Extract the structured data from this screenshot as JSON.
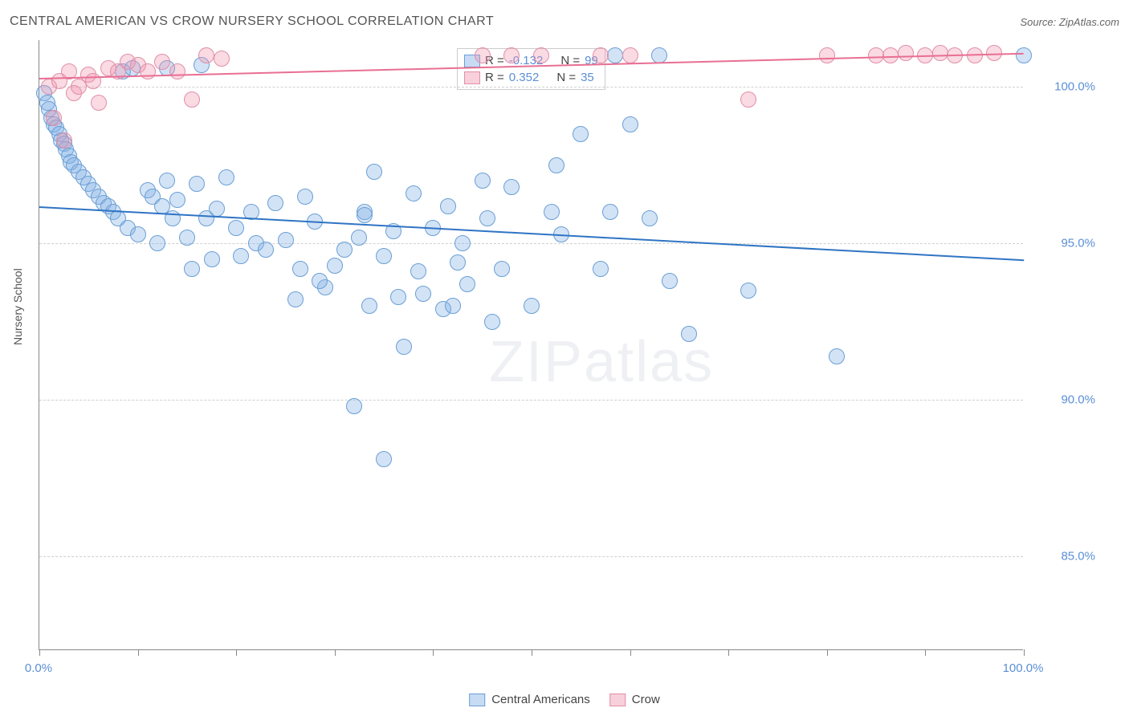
{
  "title": "CENTRAL AMERICAN VS CROW NURSERY SCHOOL CORRELATION CHART",
  "source_prefix": "Source: ",
  "source_name": "ZipAtlas.com",
  "ylabel": "Nursery School",
  "watermark_a": "ZIP",
  "watermark_b": "atlas",
  "chart": {
    "type": "scatter",
    "xlim": [
      0,
      100
    ],
    "ylim": [
      82,
      101.5
    ],
    "xtick_positions": [
      0,
      10,
      20,
      30,
      40,
      50,
      60,
      70,
      80,
      90,
      100
    ],
    "xtick_labels": {
      "0": "0.0%",
      "100": "100.0%"
    },
    "ytick_positions": [
      85,
      90,
      95,
      100
    ],
    "ytick_labels": {
      "85": "85.0%",
      "90": "90.0%",
      "95": "95.0%",
      "100": "100.0%"
    },
    "grid_horizontal": [
      85,
      90,
      95,
      100
    ],
    "grid_color": "#d0d0d0",
    "background_color": "#ffffff",
    "axis_color": "#888888",
    "marker_size": 20,
    "series": [
      {
        "name": "Central Americans",
        "color_fill": "rgba(130,175,230,0.35)",
        "color_stroke": "#6a9fd4",
        "trend_color": "#2f74c4",
        "R": "-0.132",
        "N": "99",
        "trendline": {
          "x1": 0,
          "y1": 96.2,
          "x2": 100,
          "y2": 94.5
        },
        "points": [
          [
            0.5,
            99.8
          ],
          [
            0.8,
            99.5
          ],
          [
            1.0,
            99.3
          ],
          [
            1.2,
            99.0
          ],
          [
            1.5,
            98.8
          ],
          [
            1.7,
            98.7
          ],
          [
            2.0,
            98.5
          ],
          [
            2.2,
            98.3
          ],
          [
            2.5,
            98.2
          ],
          [
            2.7,
            98.0
          ],
          [
            3.0,
            97.8
          ],
          [
            3.2,
            97.6
          ],
          [
            3.5,
            97.5
          ],
          [
            4.0,
            97.3
          ],
          [
            4.5,
            97.1
          ],
          [
            5.0,
            96.9
          ],
          [
            5.5,
            96.7
          ],
          [
            6.0,
            96.5
          ],
          [
            6.5,
            96.3
          ],
          [
            7.0,
            96.2
          ],
          [
            7.5,
            96.0
          ],
          [
            8.0,
            95.8
          ],
          [
            9.0,
            95.5
          ],
          [
            10.0,
            95.3
          ],
          [
            11.0,
            96.7
          ],
          [
            11.5,
            96.5
          ],
          [
            12.0,
            95.0
          ],
          [
            12.5,
            96.2
          ],
          [
            13.0,
            97.0
          ],
          [
            13.5,
            95.8
          ],
          [
            14.0,
            96.4
          ],
          [
            15.0,
            95.2
          ],
          [
            16.0,
            96.9
          ],
          [
            17.0,
            95.8
          ],
          [
            17.5,
            94.5
          ],
          [
            18.0,
            96.1
          ],
          [
            19.0,
            97.1
          ],
          [
            20.0,
            95.5
          ],
          [
            20.5,
            94.6
          ],
          [
            21.5,
            96.0
          ],
          [
            22.0,
            95.0
          ],
          [
            23.0,
            94.8
          ],
          [
            24.0,
            96.3
          ],
          [
            25.0,
            95.1
          ],
          [
            26.0,
            93.2
          ],
          [
            27.0,
            96.5
          ],
          [
            28.0,
            95.7
          ],
          [
            29.0,
            93.6
          ],
          [
            30.0,
            94.3
          ],
          [
            31.0,
            94.8
          ],
          [
            32.0,
            89.8
          ],
          [
            32.5,
            95.2
          ],
          [
            33.0,
            96.0
          ],
          [
            33.5,
            93.0
          ],
          [
            34.0,
            97.3
          ],
          [
            35.0,
            94.6
          ],
          [
            36.0,
            95.4
          ],
          [
            36.5,
            93.3
          ],
          [
            37.0,
            91.7
          ],
          [
            38.0,
            96.6
          ],
          [
            38.5,
            94.1
          ],
          [
            39.0,
            93.4
          ],
          [
            40.0,
            95.5
          ],
          [
            41.0,
            92.9
          ],
          [
            41.5,
            96.2
          ],
          [
            42.0,
            93.0
          ],
          [
            42.5,
            94.4
          ],
          [
            43.0,
            95.0
          ],
          [
            43.5,
            93.7
          ],
          [
            45.0,
            97.0
          ],
          [
            45.5,
            95.8
          ],
          [
            46.0,
            92.5
          ],
          [
            47.0,
            94.2
          ],
          [
            48.0,
            96.8
          ],
          [
            50.0,
            93.0
          ],
          [
            52.0,
            96.0
          ],
          [
            52.5,
            97.5
          ],
          [
            53.0,
            95.3
          ],
          [
            55.0,
            98.5
          ],
          [
            57.0,
            94.2
          ],
          [
            58.0,
            96.0
          ],
          [
            58.5,
            101.0
          ],
          [
            60.0,
            98.8
          ],
          [
            62.0,
            95.8
          ],
          [
            63.0,
            101.0
          ],
          [
            64.0,
            93.8
          ],
          [
            66.0,
            92.1
          ],
          [
            72.0,
            93.5
          ],
          [
            81.0,
            91.4
          ],
          [
            100.0,
            101.0
          ],
          [
            35.0,
            88.1
          ],
          [
            33.0,
            95.9
          ],
          [
            26.5,
            94.2
          ],
          [
            28.5,
            93.8
          ],
          [
            15.5,
            94.2
          ],
          [
            8.5,
            100.5
          ],
          [
            9.5,
            100.6
          ],
          [
            13.0,
            100.6
          ],
          [
            16.5,
            100.7
          ]
        ]
      },
      {
        "name": "Crow",
        "color_fill": "rgba(240,150,175,0.35)",
        "color_stroke": "#e08fa8",
        "trend_color": "#e86f93",
        "R": "0.352",
        "N": "35",
        "trendline": {
          "x1": 0,
          "y1": 100.3,
          "x2": 100,
          "y2": 101.1
        },
        "points": [
          [
            1.0,
            100.0
          ],
          [
            1.5,
            99.0
          ],
          [
            2.0,
            100.2
          ],
          [
            2.5,
            98.3
          ],
          [
            3.0,
            100.5
          ],
          [
            3.5,
            99.8
          ],
          [
            4.0,
            100.0
          ],
          [
            5.0,
            100.4
          ],
          [
            5.5,
            100.2
          ],
          [
            6.0,
            99.5
          ],
          [
            7.0,
            100.6
          ],
          [
            8.0,
            100.5
          ],
          [
            9.0,
            100.8
          ],
          [
            10.0,
            100.7
          ],
          [
            11.0,
            100.5
          ],
          [
            12.5,
            100.8
          ],
          [
            14.0,
            100.5
          ],
          [
            15.5,
            99.6
          ],
          [
            17.0,
            101.0
          ],
          [
            18.5,
            100.9
          ],
          [
            45.0,
            101.0
          ],
          [
            48.0,
            101.0
          ],
          [
            51.0,
            101.0
          ],
          [
            57.0,
            101.0
          ],
          [
            60.0,
            101.0
          ],
          [
            72.0,
            99.6
          ],
          [
            80.0,
            101.0
          ],
          [
            85.0,
            101.0
          ],
          [
            86.5,
            101.0
          ],
          [
            88.0,
            101.1
          ],
          [
            90.0,
            101.0
          ],
          [
            91.5,
            101.1
          ],
          [
            93.0,
            101.0
          ],
          [
            95.0,
            101.0
          ],
          [
            97.0,
            101.1
          ]
        ]
      }
    ]
  },
  "legend_top": {
    "r_label": "R =",
    "n_label": "N ="
  },
  "legend_bottom": [
    {
      "swatch": "blue",
      "label": "Central Americans"
    },
    {
      "swatch": "pink",
      "label": "Crow"
    }
  ]
}
